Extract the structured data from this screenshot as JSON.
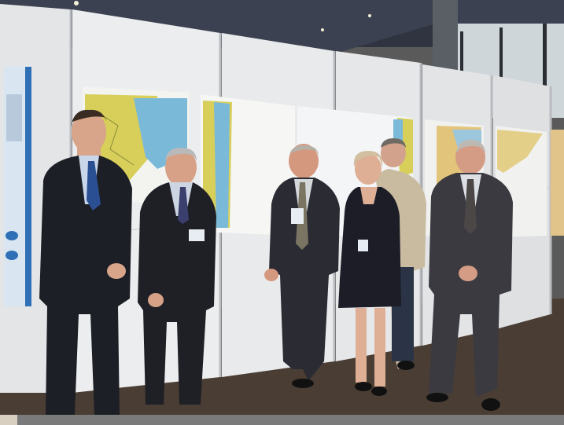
{
  "photo": {
    "scene": "",
    "colors": {
      "ceiling": "#2f3440",
      "panel": "#e9eaec",
      "floor": "#4a3d34",
      "map_sea": "#7bb9d8",
      "map_land": "#d7cf5a",
      "suit": "#1d1f26",
      "badge": "#e8edf3"
    }
  }
}
